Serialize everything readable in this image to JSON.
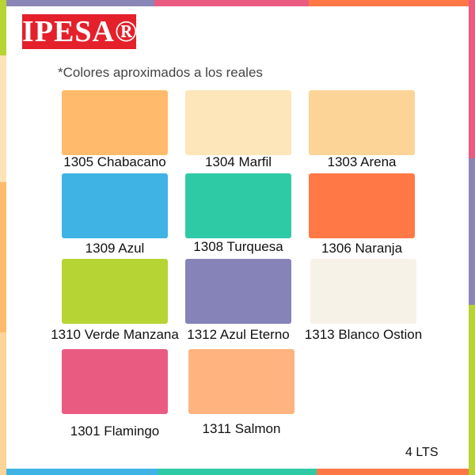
{
  "brand": "IPESA®",
  "note": "*Colores aproximados a los reales",
  "size": "4 LTS",
  "swatches": [
    {
      "name": "1305 Chabacano",
      "color": "#ffbb6b"
    },
    {
      "name": "1304 Marfil",
      "color": "#fde6b9"
    },
    {
      "name": "1303 Arena",
      "color": "#fdd497"
    },
    {
      "name": "1309 Azul",
      "color": "#3fb3e3"
    },
    {
      "name": "1308 Turquesa",
      "color": "#2ecaa5"
    },
    {
      "name": "1306 Naranja",
      "color": "#ff7846"
    },
    {
      "name": "1310 Verde Manzana",
      "color": "#b6d433"
    },
    {
      "name": "1312 Azul Eterno",
      "color": "#8683b8"
    },
    {
      "name": "1313 Blanco Ostion",
      "color": "#f7f2e8"
    },
    {
      "name": "1301 Flamingo",
      "color": "#ea5b82"
    },
    {
      "name": "1311 Salmon",
      "color": "#ffb37e"
    }
  ]
}
